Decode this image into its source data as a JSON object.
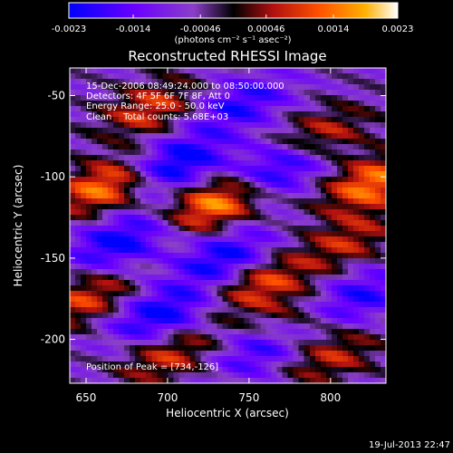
{
  "chart_data": {
    "type": "heatmap",
    "title": "Reconstructed RHESSI Image",
    "xlabel": "Heliocentric X (arcsec)",
    "ylabel": "Heliocentric Y (arcsec)",
    "xlim": [
      640,
      834
    ],
    "ylim": [
      -227,
      -33
    ],
    "x_ticks": [
      650,
      700,
      750,
      800
    ],
    "y_ticks": [
      -50,
      -100,
      -150,
      -200
    ],
    "colorbar": {
      "range": [
        -0.0023,
        0.0023
      ],
      "tick_values": [
        -0.0023,
        -0.0014,
        -0.00046,
        0.00046,
        0.0014,
        0.0023
      ],
      "tick_labels": [
        "-0.0023",
        "-0.0014",
        "-0.00046",
        "0.00046",
        "0.0014",
        "0.0023"
      ],
      "label": "(photons cm⁻² s⁻¹ asec⁻²)",
      "colors": [
        "#0000ff",
        "#6a00ff",
        "#8a3fc8",
        "#000000",
        "#b01010",
        "#ff5000",
        "#ffb000",
        "#ffffff"
      ]
    },
    "annotations": [
      "15-Dec-2006 08:49:24.000 to 08:50:00.000",
      "Detectors: 4F 5F 6F 7F 8F, Att 0",
      "Energy Range: 25.0 - 50.0 keV",
      "Clean    Total counts: 5.68E+03"
    ],
    "peak_label": "Position of Peak = [734,-126]",
    "peak": {
      "x": 734,
      "y": -126
    },
    "bright_spots": [
      {
        "x": 662,
        "y": -106,
        "v": 0.0021
      },
      {
        "x": 730,
        "y": -116,
        "v": 0.0023
      },
      {
        "x": 825,
        "y": -104,
        "v": 0.002
      },
      {
        "x": 690,
        "y": -58,
        "v": 0.0015
      },
      {
        "x": 793,
        "y": -75,
        "v": 0.0014
      },
      {
        "x": 650,
        "y": -175,
        "v": 0.0015
      },
      {
        "x": 757,
        "y": -166,
        "v": 0.0016
      },
      {
        "x": 810,
        "y": -140,
        "v": 0.0012
      },
      {
        "x": 700,
        "y": -210,
        "v": 0.0014
      },
      {
        "x": 800,
        "y": -210,
        "v": 0.0013
      },
      {
        "x": 775,
        "y": -190,
        "v": 0.0011
      }
    ],
    "dark_spots": [
      {
        "x": 705,
        "y": -92,
        "v": -0.002
      },
      {
        "x": 768,
        "y": -95,
        "v": -0.0019
      },
      {
        "x": 670,
        "y": -140,
        "v": -0.0018
      },
      {
        "x": 735,
        "y": -150,
        "v": -0.0017
      },
      {
        "x": 695,
        "y": -185,
        "v": -0.0018
      },
      {
        "x": 760,
        "y": -205,
        "v": -0.0016
      },
      {
        "x": 745,
        "y": -55,
        "v": -0.0014
      },
      {
        "x": 815,
        "y": -175,
        "v": -0.0015
      }
    ]
  },
  "timestamp": "19-Jul-2013 22:47"
}
